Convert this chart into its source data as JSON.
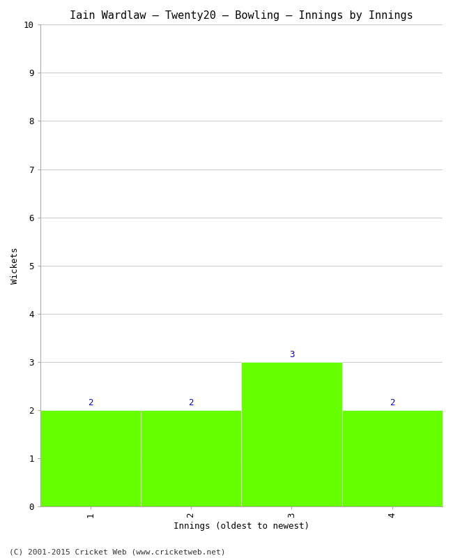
{
  "title": "Iain Wardlaw – Twenty20 – Bowling – Innings by Innings",
  "xlabel": "Innings (oldest to newest)",
  "ylabel": "Wickets",
  "categories": [
    1,
    2,
    3,
    4
  ],
  "values": [
    2,
    2,
    3,
    2
  ],
  "bar_color": "#66ff00",
  "ylim": [
    0,
    10
  ],
  "yticks": [
    0,
    1,
    2,
    3,
    4,
    5,
    6,
    7,
    8,
    9,
    10
  ],
  "background_color": "#ffffff",
  "footer": "(C) 2001-2015 Cricket Web (www.cricketweb.net)",
  "title_fontsize": 11,
  "label_fontsize": 9,
  "footer_fontsize": 8,
  "annotation_fontsize": 9,
  "bar_width": 1.0
}
